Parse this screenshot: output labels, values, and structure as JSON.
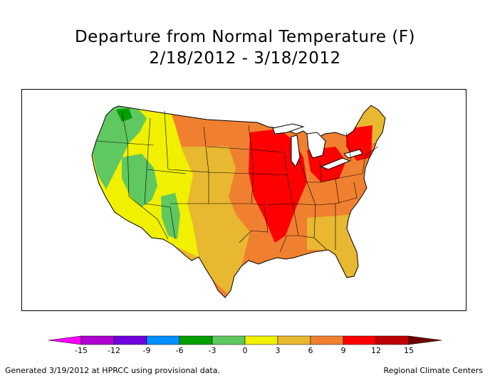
{
  "title_line1": "Departure from Normal Temperature (F)",
  "title_line2": "2/18/2012 - 3/18/2012",
  "legend": {
    "ticks": [
      "-15",
      "-12",
      "-9",
      "-6",
      "-3",
      "0",
      "3",
      "6",
      "9",
      "12",
      "15"
    ],
    "colors": [
      "#ff00ff",
      "#b000d0",
      "#7000e0",
      "#0090ff",
      "#00a000",
      "#60c860",
      "#f0f000",
      "#e8b830",
      "#f08030",
      "#ff0000",
      "#c00000",
      "#700000"
    ]
  },
  "map_colors": {
    "green": "#60c860",
    "dark_green": "#00a000",
    "yellow": "#f0f000",
    "light_orange": "#e8b830",
    "orange": "#f08030",
    "red": "#ff0000"
  },
  "footer_left": "Generated 3/19/2012 at HPRCC using provisional data.",
  "footer_right": "Regional Climate Centers"
}
